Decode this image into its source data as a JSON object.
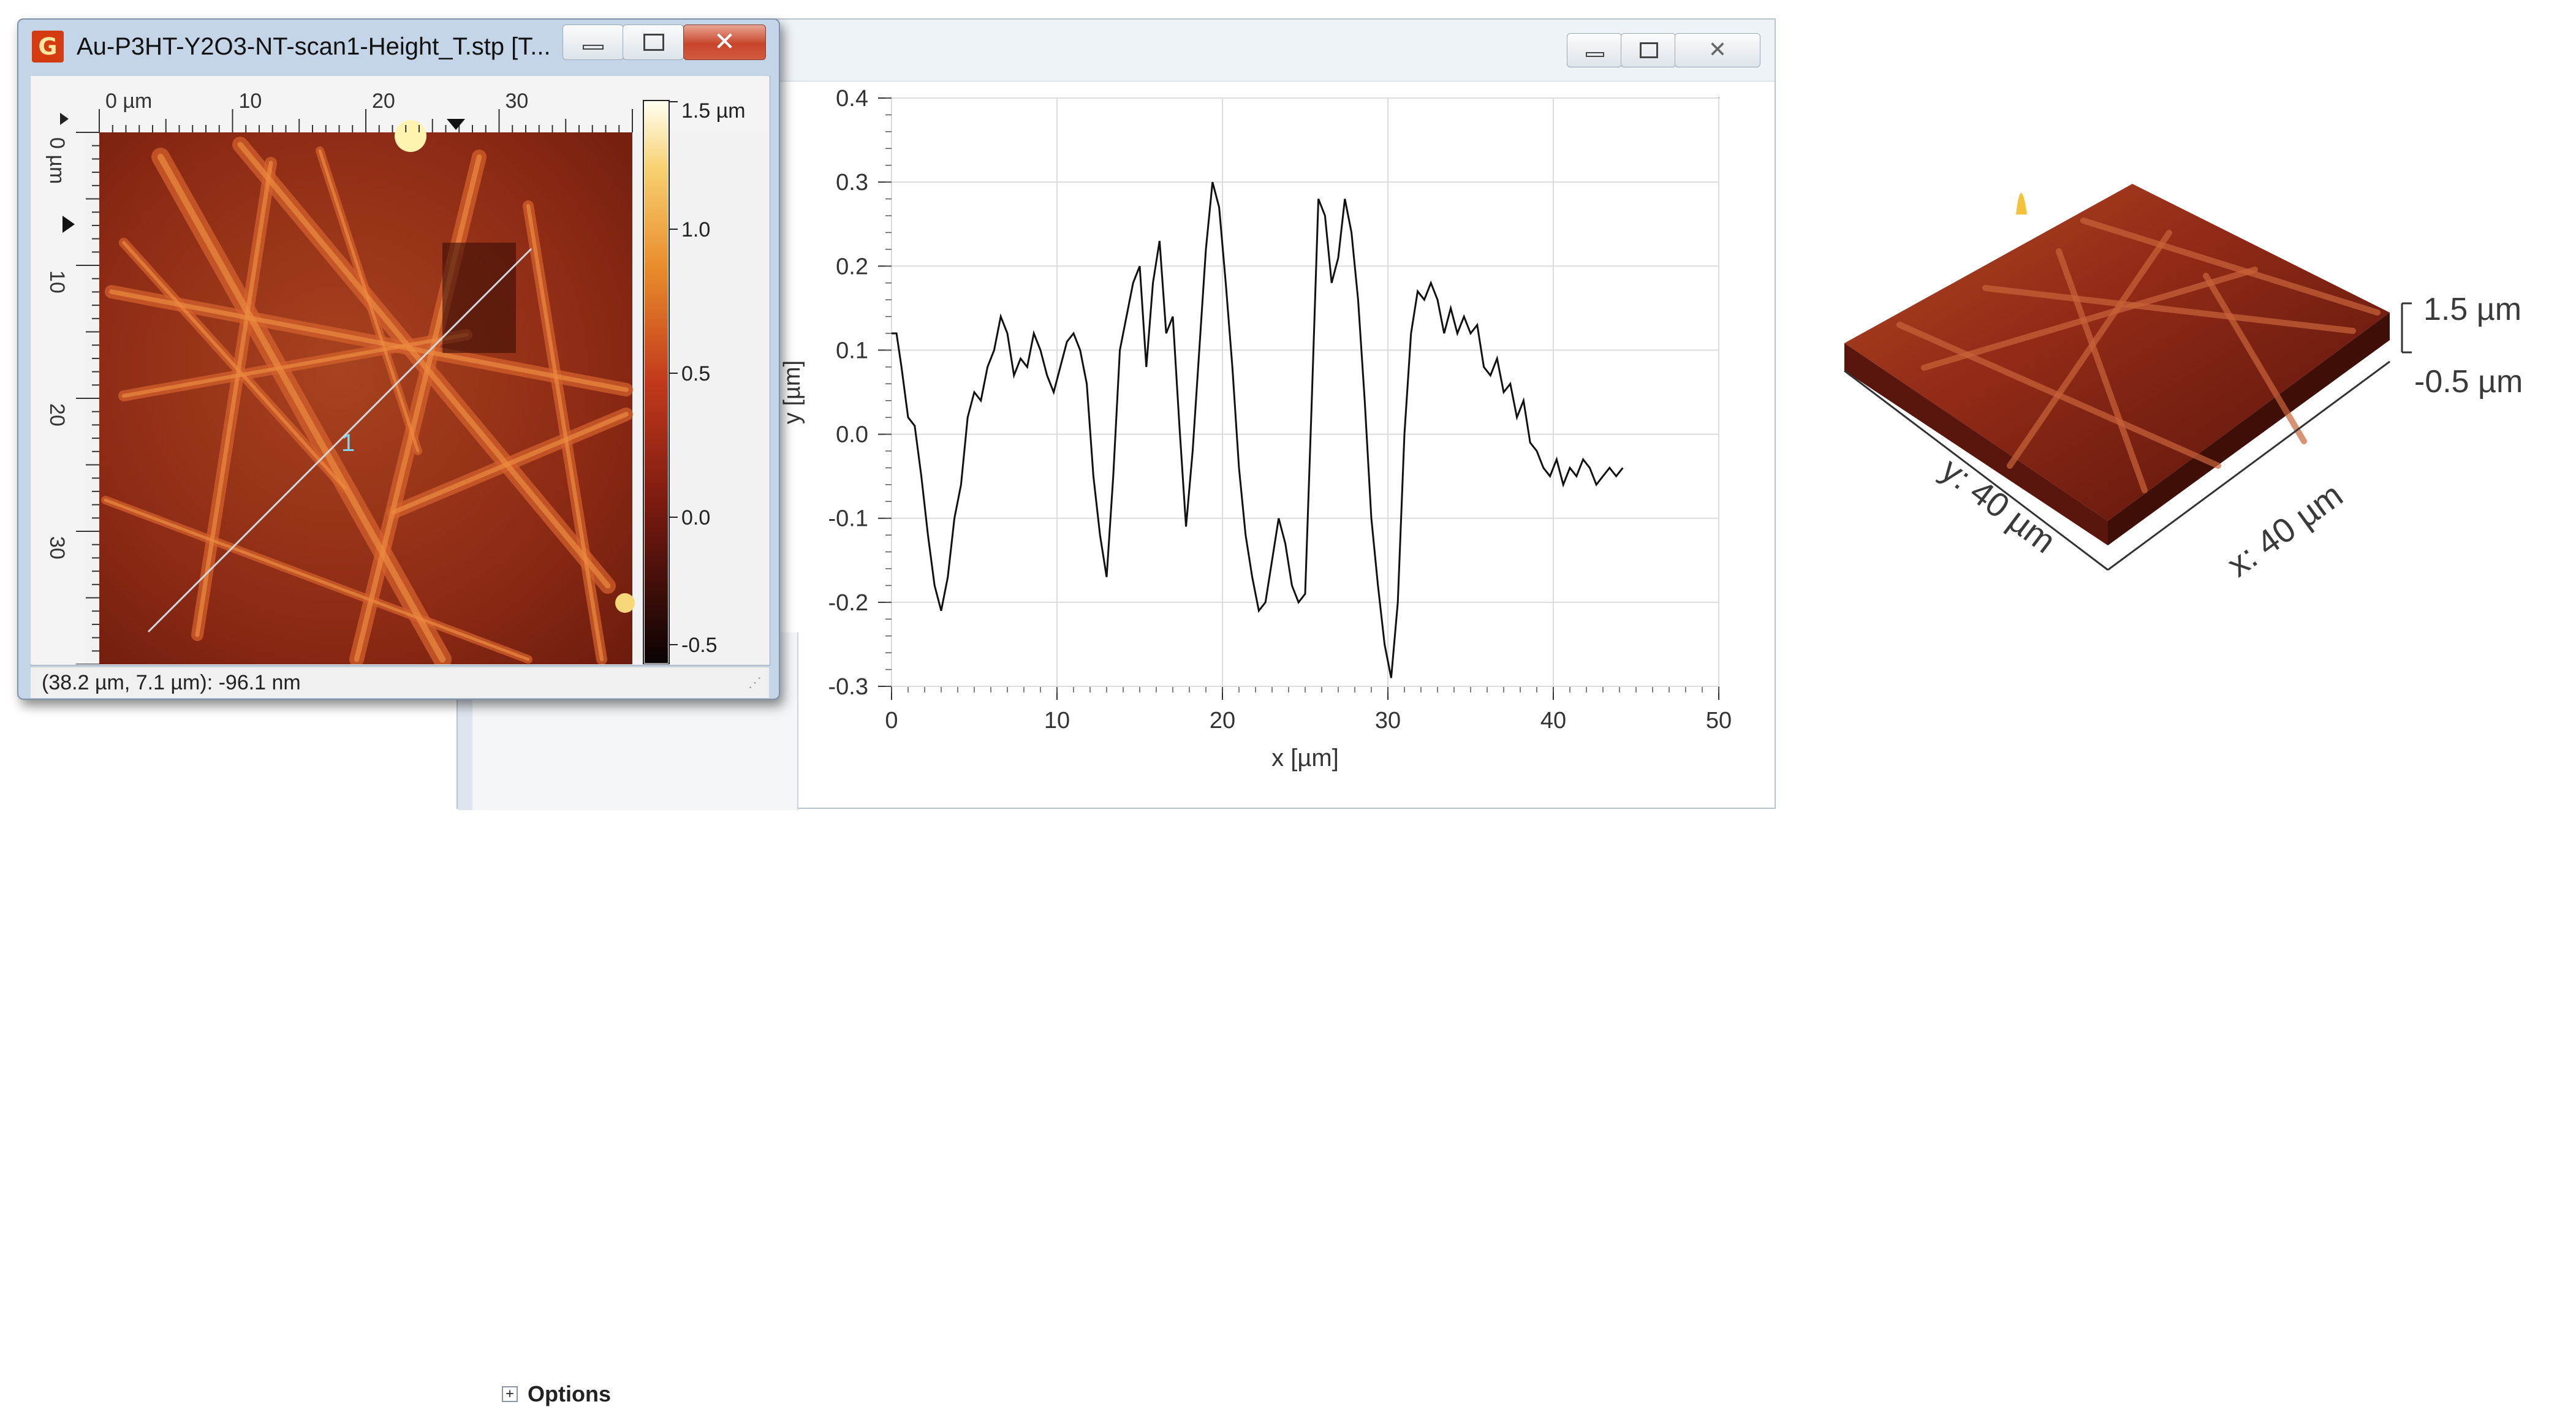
{
  "image_window": {
    "title": "Au-P3HT-Y2O3-NT-scan1-Height_T.stp [T...",
    "app_icon_letter": "G",
    "close_glyph": "✕",
    "status_text": "(38.2 µm, 7.1 µm): -96.1 nm",
    "ruler_top_labels": [
      "0 µm",
      "10",
      "20",
      "30"
    ],
    "ruler_left_labels": [
      "0 µm",
      "10",
      "20",
      "30"
    ],
    "colorbar_labels": [
      "1.5 µm",
      "1.0",
      "0.5",
      "0.0",
      "-0.5"
    ],
    "profile_line_label": "1",
    "colors": {
      "titlebar": "#c4d5e8",
      "close_button": "#c8452b",
      "profile_line": "#cfd8e0",
      "line_label": "#7fd4f0"
    }
  },
  "graph_window": {
    "options_label": "Options",
    "expand_glyph": "+"
  },
  "chart_data": {
    "type": "line",
    "title": "",
    "xlabel": "x [µm]",
    "ylabel": "y [µm]",
    "xlim": [
      0,
      50
    ],
    "ylim": [
      -0.3,
      0.4
    ],
    "xticks": [
      0,
      10,
      20,
      30,
      40,
      50
    ],
    "yticks": [
      -0.3,
      -0.2,
      -0.1,
      0.0,
      0.1,
      0.2,
      0.3,
      0.4
    ],
    "ytick_labels": [
      "-0.3",
      "-0.2",
      "-0.1",
      "0.0",
      "0.1",
      "0.2",
      "0.3",
      "0.4"
    ],
    "grid": true,
    "color": "#111111",
    "x": [
      0,
      0.3,
      0.6,
      1.0,
      1.4,
      1.8,
      2.2,
      2.6,
      3.0,
      3.4,
      3.8,
      4.2,
      4.6,
      5.0,
      5.4,
      5.8,
      6.2,
      6.6,
      7.0,
      7.4,
      7.8,
      8.2,
      8.6,
      9.0,
      9.4,
      9.8,
      10.2,
      10.6,
      11.0,
      11.4,
      11.8,
      12.2,
      12.6,
      13.0,
      13.4,
      13.8,
      14.2,
      14.6,
      15.0,
      15.4,
      15.8,
      16.2,
      16.6,
      17.0,
      17.4,
      17.8,
      18.2,
      18.6,
      19.0,
      19.4,
      19.8,
      20.2,
      20.6,
      21.0,
      21.4,
      21.8,
      22.2,
      22.6,
      23.0,
      23.4,
      23.8,
      24.2,
      24.6,
      25.0,
      25.4,
      25.8,
      26.2,
      26.6,
      27.0,
      27.4,
      27.8,
      28.2,
      28.6,
      29.0,
      29.4,
      29.8,
      30.2,
      30.6,
      31.0,
      31.4,
      31.8,
      32.2,
      32.6,
      33.0,
      33.4,
      33.8,
      34.2,
      34.6,
      35.0,
      35.4,
      35.8,
      36.2,
      36.6,
      37.0,
      37.4,
      37.8,
      38.2,
      38.6,
      39.0,
      39.4,
      39.8,
      40.2,
      40.6,
      41.0,
      41.4,
      41.8,
      42.2,
      42.6,
      43.0,
      43.4,
      43.8,
      44.2
    ],
    "y": [
      0.12,
      0.12,
      0.08,
      0.02,
      0.01,
      -0.05,
      -0.12,
      -0.18,
      -0.21,
      -0.17,
      -0.1,
      -0.06,
      0.02,
      0.05,
      0.04,
      0.08,
      0.1,
      0.14,
      0.12,
      0.07,
      0.09,
      0.08,
      0.12,
      0.1,
      0.07,
      0.05,
      0.08,
      0.11,
      0.12,
      0.1,
      0.06,
      -0.05,
      -0.12,
      -0.17,
      -0.05,
      0.1,
      0.14,
      0.18,
      0.2,
      0.08,
      0.18,
      0.23,
      0.12,
      0.14,
      0.01,
      -0.11,
      -0.02,
      0.1,
      0.22,
      0.3,
      0.27,
      0.18,
      0.08,
      -0.04,
      -0.12,
      -0.17,
      -0.21,
      -0.2,
      -0.15,
      -0.1,
      -0.13,
      -0.18,
      -0.2,
      -0.19,
      0.04,
      0.28,
      0.26,
      0.18,
      0.21,
      0.28,
      0.24,
      0.16,
      0.04,
      -0.1,
      -0.18,
      -0.25,
      -0.29,
      -0.2,
      0.0,
      0.12,
      0.17,
      0.16,
      0.18,
      0.16,
      0.12,
      0.15,
      0.12,
      0.14,
      0.12,
      0.13,
      0.08,
      0.07,
      0.09,
      0.05,
      0.06,
      0.02,
      0.04,
      -0.01,
      -0.02,
      -0.04,
      -0.05,
      -0.03,
      -0.06,
      -0.04,
      -0.05,
      -0.03,
      -0.04,
      -0.06,
      -0.05,
      -0.04,
      -0.05,
      -0.04
    ]
  },
  "view3d": {
    "height_top_label": "1.5 µm",
    "height_bottom_label": "-0.5 µm",
    "y_axis_label": "y: 40 µm",
    "x_axis_label": "x: 40 µm"
  }
}
